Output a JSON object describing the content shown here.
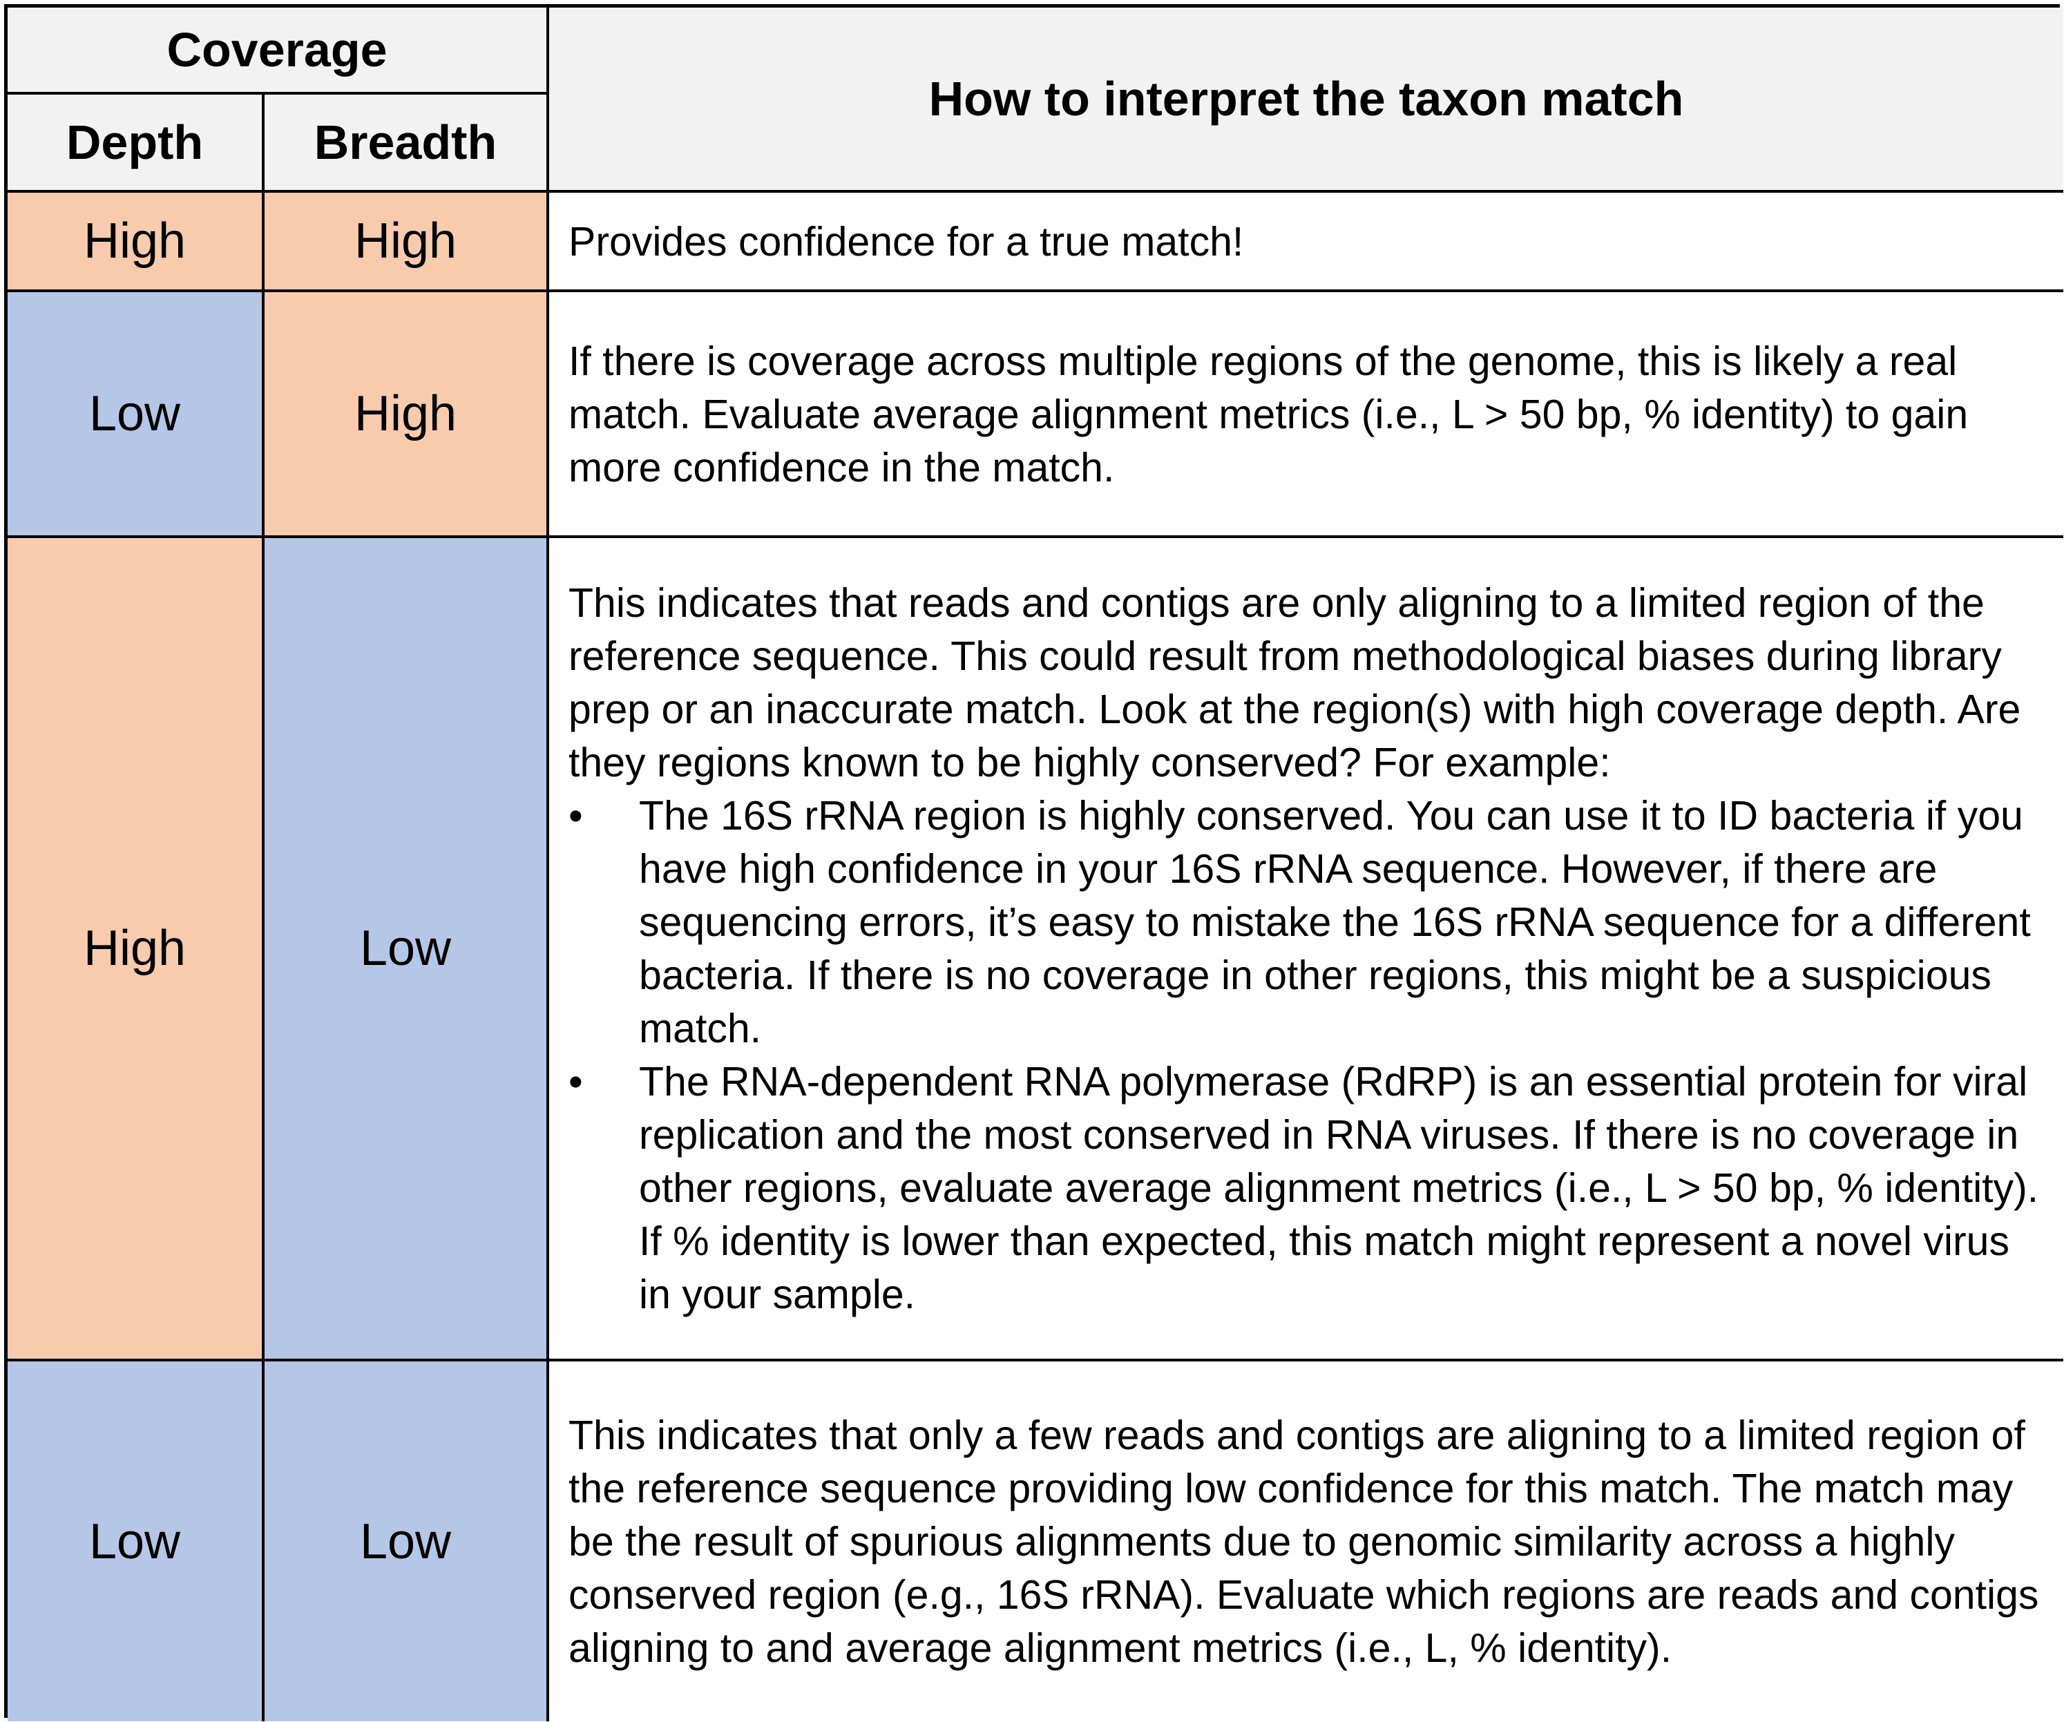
{
  "header": {
    "coverage": "Coverage",
    "depth": "Depth",
    "breadth": "Breadth",
    "interpret": "How to interpret the taxon match"
  },
  "rows": [
    {
      "depth": "High",
      "breadth": "High",
      "text": "Provides confidence for a true match!"
    },
    {
      "depth": "Low",
      "breadth": "High",
      "text": "If there is coverage across multiple regions of the genome, this is likely a real match. Evaluate average alignment metrics (i.e., L > 50 bp, % identity) to gain more confidence in the match."
    },
    {
      "depth": "High",
      "breadth": "Low",
      "text": "This indicates that reads and contigs are only aligning to a limited region of the reference sequence. This could result from methodological biases during library prep or an inaccurate match. Look at the region(s) with high coverage depth. Are they regions known to be highly conserved? For example:",
      "bullets": [
        "The 16S rRNA region is highly conserved. You can use it to ID bacteria if you have high confidence in your 16S rRNA sequence. However, if there are sequencing errors, it’s easy to mistake the 16S rRNA sequence for a different bacteria. If there is no coverage in other regions, this might be a suspicious match.",
        "The RNA-dependent RNA polymerase (RdRP) is an essential protein for viral replication and the most conserved in RNA viruses. If there is no coverage in other regions, evaluate average alignment metrics (i.e., L > 50 bp, % identity). If % identity is lower than expected, this match might represent a novel virus in your sample."
      ]
    },
    {
      "depth": "Low",
      "breadth": "Low",
      "text": "This indicates that only a few reads and contigs are aligning to a limited region of the reference sequence providing low confidence for this match. The match may be the result of spurious alignments due to genomic similarity across a highly conserved region (e.g., 16S rRNA). Evaluate which regions are reads and contigs aligning to and average alignment metrics (i.e., L,  % identity)."
    }
  ],
  "bullet_glyph": "•",
  "colors": {
    "high": "#f8cbad",
    "low": "#b4c7e7",
    "header": "#f2f2f2"
  }
}
